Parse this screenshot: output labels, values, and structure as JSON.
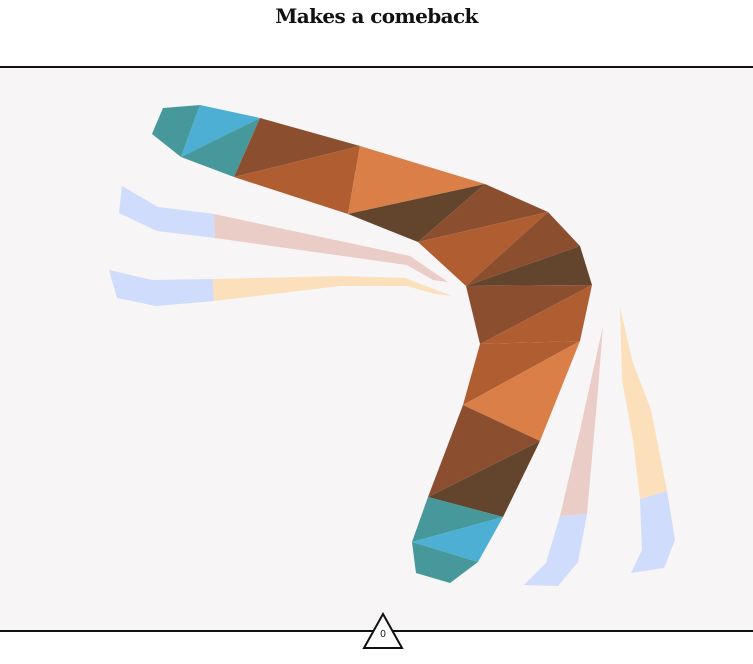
{
  "header": {
    "title": "Makes a comeback"
  },
  "colors": {
    "background": "#f7f5f6",
    "bar": "#ffffff",
    "rule": "#111111",
    "orange_light": "#d97f47",
    "orange_mid": "#b05d31",
    "brown": "#8b4f30",
    "brown_dark": "#63452e",
    "teal": "#46989a",
    "blue": "#4cafd3",
    "trail_blue": "#cfdcfb",
    "trail_pink": "#ebcdc8",
    "trail_peach": "#fcdfbb"
  },
  "stage": {
    "object_icon": "boomerang-icon",
    "trail_icons": [
      "motion-trail-icon",
      "motion-trail-icon",
      "motion-trail-icon",
      "motion-trail-icon"
    ]
  },
  "footer": {
    "counter_icon": "triangle-icon",
    "counter_value": "0"
  }
}
